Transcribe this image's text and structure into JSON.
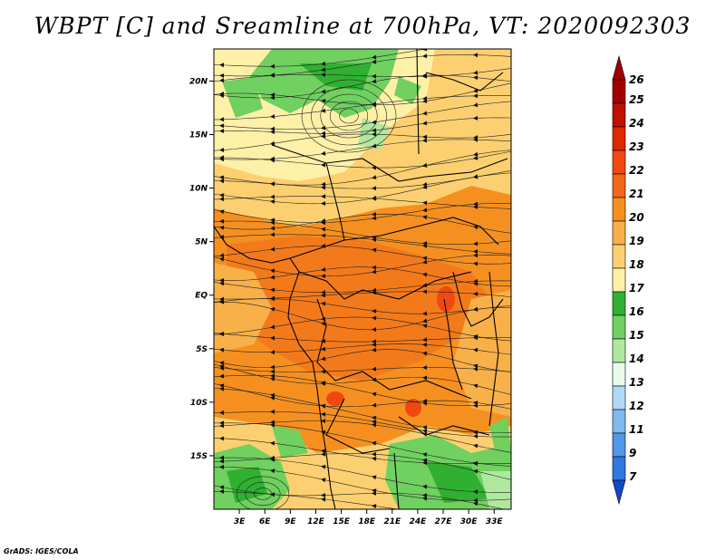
{
  "title": "WBPT [C] and Sreamline at 700hPa, VT: 2020092303",
  "credit": "GrADS: IGES/COLA",
  "map": {
    "lon_range": [
      0,
      35
    ],
    "lat_range": [
      -20,
      23
    ],
    "lat_ticks": [
      {
        "value": 20,
        "label": "20N"
      },
      {
        "value": 15,
        "label": "15N"
      },
      {
        "value": 10,
        "label": "10N"
      },
      {
        "value": 5,
        "label": "5N"
      },
      {
        "value": 0,
        "label": "EQ"
      },
      {
        "value": -5,
        "label": "5S"
      },
      {
        "value": -10,
        "label": "10S"
      },
      {
        "value": -15,
        "label": "15S"
      }
    ],
    "lon_ticks": [
      {
        "value": 3,
        "label": "3E"
      },
      {
        "value": 6,
        "label": "6E"
      },
      {
        "value": 9,
        "label": "9E"
      },
      {
        "value": 12,
        "label": "12E"
      },
      {
        "value": 15,
        "label": "15E"
      },
      {
        "value": 18,
        "label": "18E"
      },
      {
        "value": 21,
        "label": "21E"
      },
      {
        "value": 24,
        "label": "24E"
      },
      {
        "value": 27,
        "label": "27E"
      },
      {
        "value": 30,
        "label": "30E"
      },
      {
        "value": 33,
        "label": "33E"
      }
    ]
  },
  "colorbar": {
    "levels": [
      {
        "label": "26",
        "color": "#a00000"
      },
      {
        "label": "25",
        "color": "#c01000"
      },
      {
        "label": "24",
        "color": "#e02800"
      },
      {
        "label": "23",
        "color": "#f04810"
      },
      {
        "label": "22",
        "color": "#f06818"
      },
      {
        "label": "21",
        "color": "#f59020"
      },
      {
        "label": "20",
        "color": "#f8b048"
      },
      {
        "label": "19",
        "color": "#fcd070"
      },
      {
        "label": "18",
        "color": "#fff0a8"
      },
      {
        "label": "17",
        "color": "#30b030"
      },
      {
        "label": "16",
        "color": "#70d060"
      },
      {
        "label": "15",
        "color": "#b0e8a0"
      },
      {
        "label": "14",
        "color": "#e8fae8"
      },
      {
        "label": "13",
        "color": "#b0d8f8"
      },
      {
        "label": "12",
        "color": "#80b8f0"
      },
      {
        "label": "11",
        "color": "#5098e8"
      },
      {
        "label": "9",
        "color": "#3078e0"
      },
      {
        "label": "7",
        "color": "#1a5ed8"
      }
    ],
    "bottom_color": "#1448c8"
  }
}
